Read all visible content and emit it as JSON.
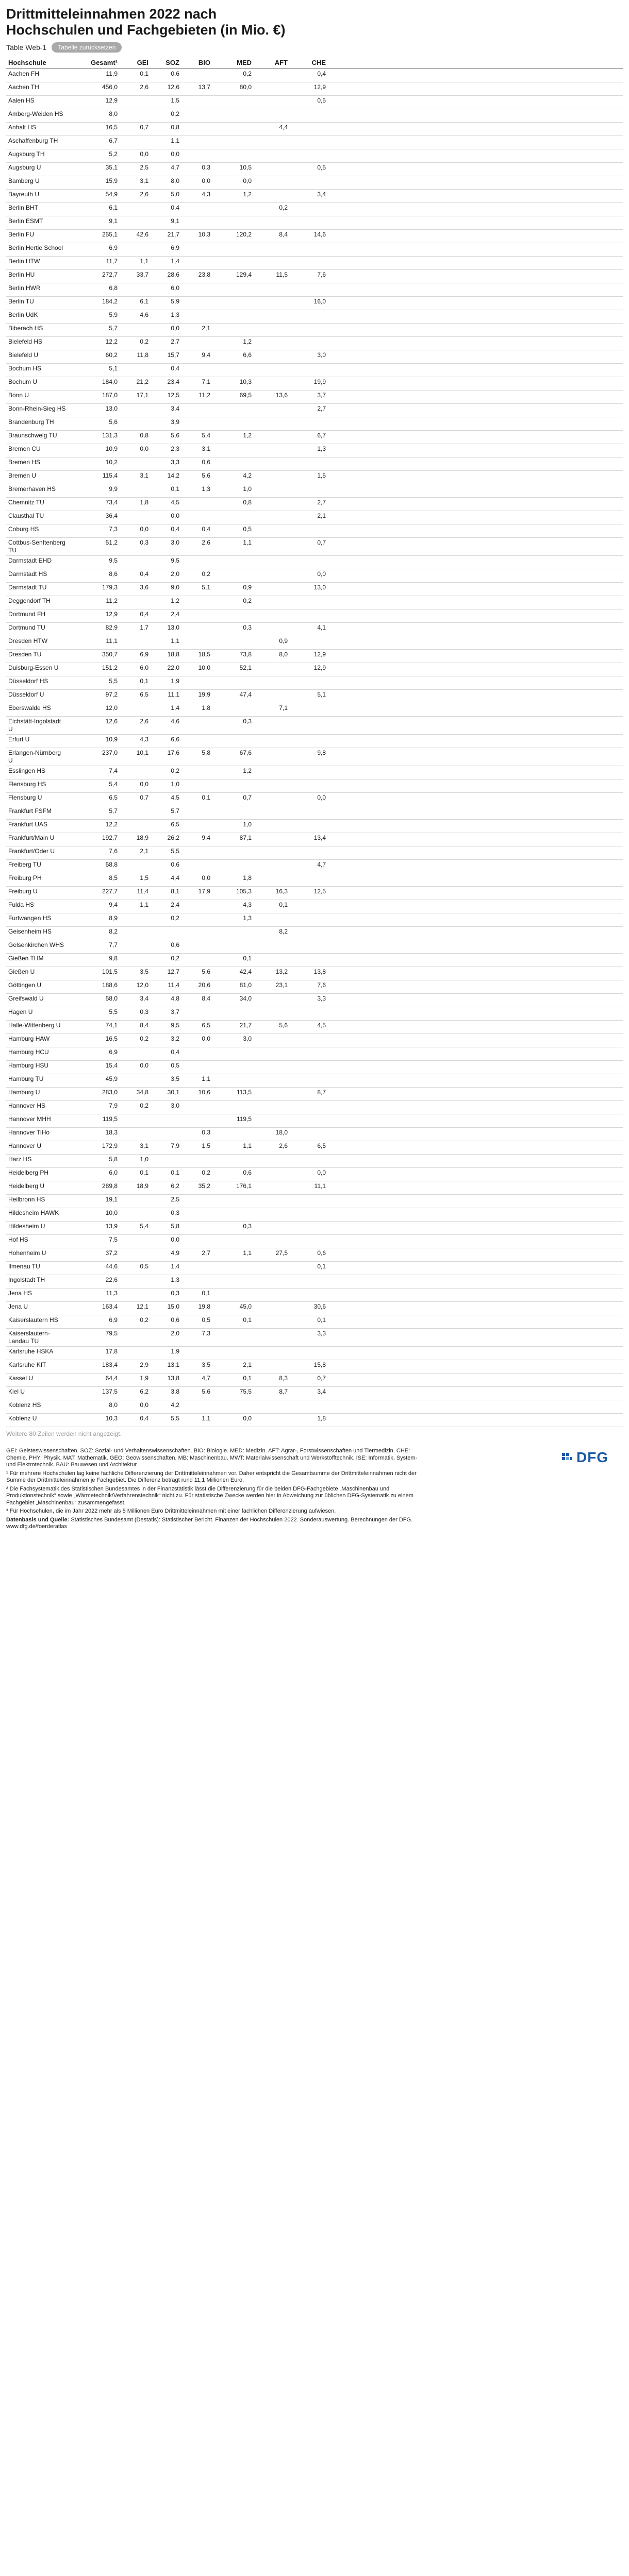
{
  "title": "Drittmitteleinnahmen 2022 nach Hochschulen und Fachgebieten (in Mio. €)",
  "table_number": "Table Web-1",
  "reset_button": "Tabelle zurücksetzen",
  "columns": [
    "Hochschule",
    "Gesamt¹",
    "GEI",
    "SOZ",
    "BIO",
    "MED",
    "AFT",
    "CHE"
  ],
  "rows": [
    [
      "Aachen FH",
      "11,9",
      "0,1",
      "0,6",
      "",
      "0,2",
      "",
      "0,4"
    ],
    [
      "Aachen TH",
      "456,0",
      "2,6",
      "12,6",
      "13,7",
      "80,0",
      "",
      "12,9"
    ],
    [
      "Aalen HS",
      "12,9",
      "",
      "1,5",
      "",
      "",
      "",
      "0,5"
    ],
    [
      "Amberg-Weiden HS",
      "8,0",
      "",
      "0,2",
      "",
      "",
      "",
      ""
    ],
    [
      "Anhalt HS",
      "16,5",
      "0,7",
      "0,8",
      "",
      "",
      "4,4",
      ""
    ],
    [
      "Aschaffenburg TH",
      "6,7",
      "",
      "1,1",
      "",
      "",
      "",
      ""
    ],
    [
      "Augsburg TH",
      "5,2",
      "0,0",
      "0,0",
      "",
      "",
      "",
      ""
    ],
    [
      "Augsburg U",
      "35,1",
      "2,5",
      "4,7",
      "0,3",
      "10,5",
      "",
      "0,5"
    ],
    [
      "Bamberg U",
      "15,9",
      "3,1",
      "8,0",
      "0,0",
      "0,0",
      "",
      ""
    ],
    [
      "Bayreuth U",
      "54,9",
      "2,6",
      "5,0",
      "4,3",
      "1,2",
      "",
      "3,4"
    ],
    [
      "Berlin BHT",
      "6,1",
      "",
      "0,4",
      "",
      "",
      "0,2",
      ""
    ],
    [
      "Berlin ESMT",
      "9,1",
      "",
      "9,1",
      "",
      "",
      "",
      ""
    ],
    [
      "Berlin FU",
      "255,1",
      "42,6",
      "21,7",
      "10,3",
      "120,2",
      "8,4",
      "14,6"
    ],
    [
      "Berlin Hertie School",
      "6,9",
      "",
      "6,9",
      "",
      "",
      "",
      ""
    ],
    [
      "Berlin HTW",
      "11,7",
      "1,1",
      "1,4",
      "",
      "",
      "",
      ""
    ],
    [
      "Berlin HU",
      "272,7",
      "33,7",
      "28,6",
      "23,8",
      "129,4",
      "11,5",
      "7,6"
    ],
    [
      "Berlin HWR",
      "6,8",
      "",
      "6,0",
      "",
      "",
      "",
      ""
    ],
    [
      "Berlin TU",
      "184,2",
      "6,1",
      "5,9",
      "",
      "",
      "",
      "16,0"
    ],
    [
      "Berlin UdK",
      "5,9",
      "4,6",
      "1,3",
      "",
      "",
      "",
      ""
    ],
    [
      "Biberach HS",
      "5,7",
      "",
      "0,0",
      "2,1",
      "",
      "",
      ""
    ],
    [
      "Bielefeld HS",
      "12,2",
      "0,2",
      "2,7",
      "",
      "1,2",
      "",
      ""
    ],
    [
      "Bielefeld U",
      "60,2",
      "11,8",
      "15,7",
      "9,4",
      "6,6",
      "",
      "3,0"
    ],
    [
      "Bochum HS",
      "5,1",
      "",
      "0,4",
      "",
      "",
      "",
      ""
    ],
    [
      "Bochum U",
      "184,0",
      "21,2",
      "23,4",
      "7,1",
      "10,3",
      "",
      "19,9"
    ],
    [
      "Bonn U",
      "187,0",
      "17,1",
      "12,5",
      "11,2",
      "69,5",
      "13,6",
      "3,7"
    ],
    [
      "Bonn-Rhein-Sieg HS",
      "13,0",
      "",
      "3,4",
      "",
      "",
      "",
      "2,7"
    ],
    [
      "Brandenburg TH",
      "5,6",
      "",
      "3,9",
      "",
      "",
      "",
      ""
    ],
    [
      "Braunschweig TU",
      "131,3",
      "0,8",
      "5,6",
      "5,4",
      "1,2",
      "",
      "6,7"
    ],
    [
      "Bremen CU",
      "10,9",
      "0,0",
      "2,3",
      "3,1",
      "",
      "",
      "1,3"
    ],
    [
      "Bremen HS",
      "10,2",
      "",
      "3,3",
      "0,6",
      "",
      "",
      ""
    ],
    [
      "Bremen U",
      "115,4",
      "3,1",
      "14,2",
      "5,6",
      "4,2",
      "",
      "1,5"
    ],
    [
      "Bremerhaven HS",
      "9,9",
      "",
      "0,1",
      "1,3",
      "1,0",
      "",
      ""
    ],
    [
      "Chemnitz TU",
      "73,4",
      "1,8",
      "4,5",
      "",
      "0,8",
      "",
      "2,7"
    ],
    [
      "Clausthal TU",
      "36,4",
      "",
      "0,0",
      "",
      "",
      "",
      "2,1"
    ],
    [
      "Coburg HS",
      "7,3",
      "0,0",
      "0,4",
      "0,4",
      "0,5",
      "",
      ""
    ],
    [
      "Cottbus-Senftenberg TU",
      "51,2",
      "0,3",
      "3,0",
      "2,6",
      "1,1",
      "",
      "0,7"
    ],
    [
      "Darmstadt EHD",
      "9,5",
      "",
      "9,5",
      "",
      "",
      "",
      ""
    ],
    [
      "Darmstadt HS",
      "8,6",
      "0,4",
      "2,0",
      "0,2",
      "",
      "",
      "0,0"
    ],
    [
      "Darmstadt TU",
      "179,3",
      "3,6",
      "9,0",
      "5,1",
      "0,9",
      "",
      "13,0"
    ],
    [
      "Deggendorf TH",
      "11,2",
      "",
      "1,2",
      "",
      "0,2",
      "",
      ""
    ],
    [
      "Dortmund FH",
      "12,9",
      "0,4",
      "2,4",
      "",
      "",
      "",
      ""
    ],
    [
      "Dortmund TU",
      "82,9",
      "1,7",
      "13,0",
      "",
      "0,3",
      "",
      "4,1"
    ],
    [
      "Dresden HTW",
      "11,1",
      "",
      "1,1",
      "",
      "",
      "0,9",
      ""
    ],
    [
      "Dresden TU",
      "350,7",
      "6,9",
      "18,8",
      "18,5",
      "73,8",
      "8,0",
      "12,9"
    ],
    [
      "Duisburg-Essen U",
      "151,2",
      "6,0",
      "22,0",
      "10,0",
      "52,1",
      "",
      "12,9"
    ],
    [
      "Düsseldorf HS",
      "5,5",
      "0,1",
      "1,9",
      "",
      "",
      "",
      ""
    ],
    [
      "Düsseldorf U",
      "97,2",
      "6,5",
      "11,1",
      "19,9",
      "47,4",
      "",
      "5,1"
    ],
    [
      "Eberswalde HS",
      "12,0",
      "",
      "1,4",
      "1,8",
      "",
      "7,1",
      ""
    ],
    [
      "Eichstätt-Ingolstadt U",
      "12,6",
      "2,6",
      "4,6",
      "",
      "0,3",
      "",
      ""
    ],
    [
      "Erfurt U",
      "10,9",
      "4,3",
      "6,6",
      "",
      "",
      "",
      ""
    ],
    [
      "Erlangen-Nürnberg U",
      "237,0",
      "10,1",
      "17,6",
      "5,8",
      "67,6",
      "",
      "9,8"
    ],
    [
      "Esslingen HS",
      "7,4",
      "",
      "0,2",
      "",
      "1,2",
      "",
      ""
    ],
    [
      "Flensburg HS",
      "5,4",
      "0,0",
      "1,0",
      "",
      "",
      "",
      ""
    ],
    [
      "Flensburg U",
      "6,5",
      "0,7",
      "4,5",
      "0,1",
      "0,7",
      "",
      "0,0"
    ],
    [
      "Frankfurt FSFM",
      "5,7",
      "",
      "5,7",
      "",
      "",
      "",
      ""
    ],
    [
      "Frankfurt UAS",
      "12,2",
      "",
      "6,5",
      "",
      "1,0",
      "",
      ""
    ],
    [
      "Frankfurt/Main U",
      "192,7",
      "18,9",
      "26,2",
      "9,4",
      "87,1",
      "",
      "13,4"
    ],
    [
      "Frankfurt/Oder U",
      "7,6",
      "2,1",
      "5,5",
      "",
      "",
      "",
      ""
    ],
    [
      "Freiberg TU",
      "58,8",
      "",
      "0,6",
      "",
      "",
      "",
      "4,7"
    ],
    [
      "Freiburg PH",
      "8,5",
      "1,5",
      "4,4",
      "0,0",
      "1,8",
      "",
      ""
    ],
    [
      "Freiburg U",
      "227,7",
      "11,4",
      "8,1",
      "17,9",
      "105,3",
      "16,3",
      "12,5"
    ],
    [
      "Fulda HS",
      "9,4",
      "1,1",
      "2,4",
      "",
      "4,3",
      "0,1",
      ""
    ],
    [
      "Furtwangen HS",
      "8,9",
      "",
      "0,2",
      "",
      "1,3",
      "",
      ""
    ],
    [
      "Geisenheim HS",
      "8,2",
      "",
      "",
      "",
      "",
      "8,2",
      ""
    ],
    [
      "Gelsenkirchen WHS",
      "7,7",
      "",
      "0,6",
      "",
      "",
      "",
      ""
    ],
    [
      "Gießen THM",
      "9,8",
      "",
      "0,2",
      "",
      "0,1",
      "",
      ""
    ],
    [
      "Gießen U",
      "101,5",
      "3,5",
      "12,7",
      "5,6",
      "42,4",
      "13,2",
      "13,8"
    ],
    [
      "Göttingen U",
      "188,6",
      "12,0",
      "11,4",
      "20,6",
      "81,0",
      "23,1",
      "7,6"
    ],
    [
      "Greifswald U",
      "58,0",
      "3,4",
      "4,8",
      "8,4",
      "34,0",
      "",
      "3,3"
    ],
    [
      "Hagen U",
      "5,5",
      "0,3",
      "3,7",
      "",
      "",
      "",
      ""
    ],
    [
      "Halle-Wittenberg U",
      "74,1",
      "8,4",
      "9,5",
      "6,5",
      "21,7",
      "5,6",
      "4,5"
    ],
    [
      "Hamburg HAW",
      "16,5",
      "0,2",
      "3,2",
      "0,0",
      "3,0",
      "",
      ""
    ],
    [
      "Hamburg HCU",
      "6,9",
      "",
      "0,4",
      "",
      "",
      "",
      ""
    ],
    [
      "Hamburg HSU",
      "15,4",
      "0,0",
      "0,5",
      "",
      "",
      "",
      ""
    ],
    [
      "Hamburg TU",
      "45,9",
      "",
      "3,5",
      "1,1",
      "",
      "",
      ""
    ],
    [
      "Hamburg U",
      "283,0",
      "34,8",
      "30,1",
      "10,6",
      "113,5",
      "",
      "8,7"
    ],
    [
      "Hannover HS",
      "7,9",
      "0,2",
      "3,0",
      "",
      "",
      "",
      ""
    ],
    [
      "Hannover MHH",
      "119,5",
      "",
      "",
      "",
      "119,5",
      "",
      ""
    ],
    [
      "Hannover TiHo",
      "18,3",
      "",
      "",
      "0,3",
      "",
      "18,0",
      ""
    ],
    [
      "Hannover U",
      "172,9",
      "3,1",
      "7,9",
      "1,5",
      "1,1",
      "2,6",
      "6,5"
    ],
    [
      "Harz HS",
      "5,8",
      "1,0",
      "",
      "",
      "",
      "",
      ""
    ],
    [
      "Heidelberg PH",
      "6,0",
      "0,1",
      "0,1",
      "0,2",
      "0,6",
      "",
      "0,0"
    ],
    [
      "Heidelberg U",
      "289,8",
      "18,9",
      "6,2",
      "35,2",
      "176,1",
      "",
      "11,1"
    ],
    [
      "Heilbronn HS",
      "19,1",
      "",
      "2,5",
      "",
      "",
      "",
      ""
    ],
    [
      "Hildesheim HAWK",
      "10,0",
      "",
      "0,3",
      "",
      "",
      "",
      ""
    ],
    [
      "Hildesheim U",
      "13,9",
      "5,4",
      "5,8",
      "",
      "0,3",
      "",
      ""
    ],
    [
      "Hof HS",
      "7,5",
      "",
      "0,0",
      "",
      "",
      "",
      ""
    ],
    [
      "Hohenheim U",
      "37,2",
      "",
      "4,9",
      "2,7",
      "1,1",
      "27,5",
      "0,6"
    ],
    [
      "Ilmenau TU",
      "44,6",
      "0,5",
      "1,4",
      "",
      "",
      "",
      "0,1"
    ],
    [
      "Ingolstadt TH",
      "22,6",
      "",
      "1,3",
      "",
      "",
      "",
      ""
    ],
    [
      "Jena HS",
      "11,3",
      "",
      "0,3",
      "0,1",
      "",
      "",
      ""
    ],
    [
      "Jena U",
      "163,4",
      "12,1",
      "15,0",
      "19,8",
      "45,0",
      "",
      "30,6"
    ],
    [
      "Kaiserslautern HS",
      "6,9",
      "0,2",
      "0,6",
      "0,5",
      "0,1",
      "",
      "0,1"
    ],
    [
      "Kaiserslautern-Landau TU",
      "79,5",
      "",
      "2,0",
      "7,3",
      "",
      "",
      "3,3"
    ],
    [
      "Karlsruhe HSKA",
      "17,8",
      "",
      "1,9",
      "",
      "",
      "",
      ""
    ],
    [
      "Karlsruhe KIT",
      "183,4",
      "2,9",
      "13,1",
      "3,5",
      "2,1",
      "",
      "15,8"
    ],
    [
      "Kassel U",
      "64,4",
      "1,9",
      "13,8",
      "4,7",
      "0,1",
      "8,3",
      "0,7"
    ],
    [
      "Kiel U",
      "137,5",
      "6,2",
      "3,8",
      "5,6",
      "75,5",
      "8,7",
      "3,4"
    ],
    [
      "Koblenz HS",
      "8,0",
      "0,0",
      "4,2",
      "",
      "",
      "",
      ""
    ],
    [
      "Koblenz U",
      "10,3",
      "0,4",
      "5,5",
      "1,1",
      "0,0",
      "",
      "1,8"
    ]
  ],
  "more_note": "Weitere 80 Zeilen werden nicht angezeigt.",
  "footnotes": [
    "GEI: Geisteswissenschaften. SOZ: Sozial- und Verhaltenswissenschaften. BIO: Biologie. MED: Medizin. AFT: Agrar-, Forstwissenschaften und Tiermedizin. CHE: Chemie. PHY: Physik. MAT: Mathematik. GEO: Geowissenschaften. MB: Maschinenbau. MWT: Materialwissenschaft und Werkstofftechnik. ISE: Informatik, System- und Elektrotechnik. BAU: Bauwesen und Architektur.",
    "¹ Für mehrere Hochschulen lag keine fachliche Differenzierung der Drittmitteleinnahmen vor. Daher entspricht die Gesamtsumme der Drittmitteleinnahmen nicht der Summe der Drittmitteleinnahmen je Fachgebiet. Die Differenz beträgt rund 11,1 Millionen Euro.",
    "² Die Fachsystematik des Statistischen Bundesamtes in der Finanzstatistik lässt die Differenzierung für die beiden DFG-Fachgebiete „Maschinenbau und Produktionstechnik“ sowie „Wärmetechnik/Verfahrenstechnik“ nicht zu. Für statistische Zwecke werden hier in Abweichung zur üblichen DFG-Systematik zu einem Fachgebiet „Maschinenbau“ zusammengefasst.",
    "³ Für Hochschulen, die im Jahr 2022 mehr als 5 Millionen Euro Drittmitteleinnahmen mit einer fachlichen Differenzierung aufwiesen."
  ],
  "source_label": "Datenbasis und Quelle:",
  "source_text": "Statistisches Bundesamt (Destatis): Statistischer Bericht. Finanzen der Hochschulen 2022. Sonderauswertung. Berechnungen der DFG.",
  "source_url": "www.dfg.de/foerderatlas",
  "logo_text": "DFG",
  "colors": {
    "logo_blue": "#1b5aa5",
    "button_gray": "#a9a9a9"
  }
}
